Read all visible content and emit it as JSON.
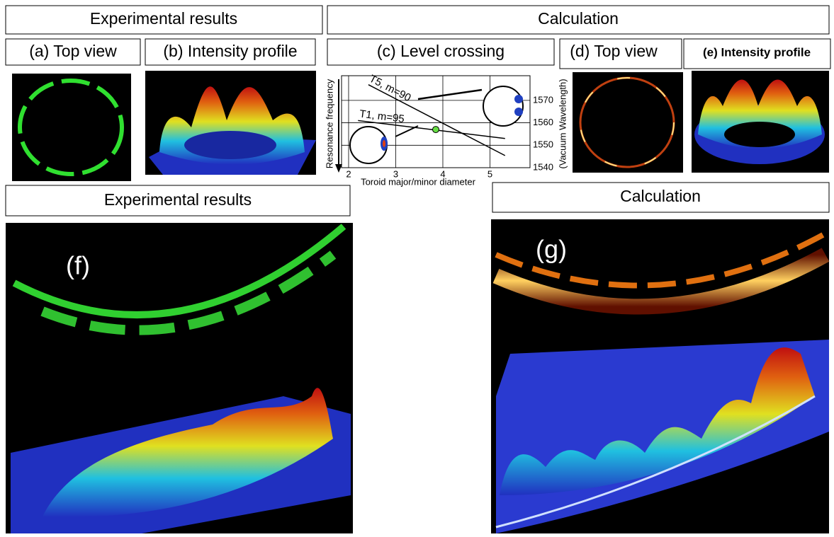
{
  "headers": {
    "top_left": "Experimental results",
    "top_right": "Calculation",
    "bottom_left": "Experimental results",
    "bottom_right": "Calculation"
  },
  "panels": [
    "(a) Top view",
    "(b) Intensity profile",
    "(c) Level crossing",
    "(d) Top view",
    "(e) Intensity profile"
  ],
  "image_labels": [
    "(f)",
    "(g)"
  ],
  "chart_data": {
    "type": "line",
    "x_label": "Toroid major/minor diameter",
    "y_label": "Resonance frequency",
    "y2_label": "(Vacuum Wavelength)",
    "xlim": [
      1.85,
      5.85
    ],
    "xticks": [
      2,
      3,
      4,
      5
    ],
    "y2lim": [
      1540,
      1581
    ],
    "y2ticks": [
      1540,
      1550,
      1560,
      1570
    ],
    "series": [
      {
        "name": "T5, m=90",
        "color": "#000000",
        "axis": "y2",
        "x": [
          2.42,
          5.32
        ],
        "values": [
          1577,
          1545.4
        ]
      },
      {
        "name": "T1, m=95",
        "color": "#000000",
        "axis": "y2",
        "x": [
          2.2,
          5.32
        ],
        "values": [
          1561,
          1553
        ]
      }
    ],
    "crossing_point": {
      "x": 3.85,
      "y": 1557,
      "color": "#66dd44"
    }
  }
}
